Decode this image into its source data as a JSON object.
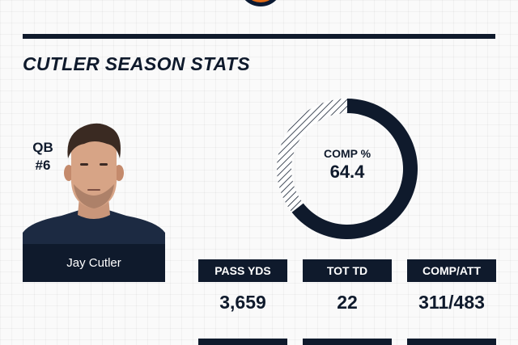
{
  "section_title": "CUTLER SEASON STATS",
  "player": {
    "position": "QB",
    "number": "#6",
    "name": "Jay Cutler"
  },
  "completion": {
    "label": "COMP %",
    "value": "64.4",
    "percent": 64.4
  },
  "stats": [
    {
      "label": "PASS YDS",
      "value": "3,659"
    },
    {
      "label": "TOT TD",
      "value": "22"
    },
    {
      "label": "COMP/ATT",
      "value": "311/483"
    }
  ],
  "colors": {
    "navy": "#0f1a2c",
    "logo_orange": "#e06a16",
    "background": "#fafafa"
  },
  "icons": {
    "team_logo": "bears-logo-icon"
  }
}
